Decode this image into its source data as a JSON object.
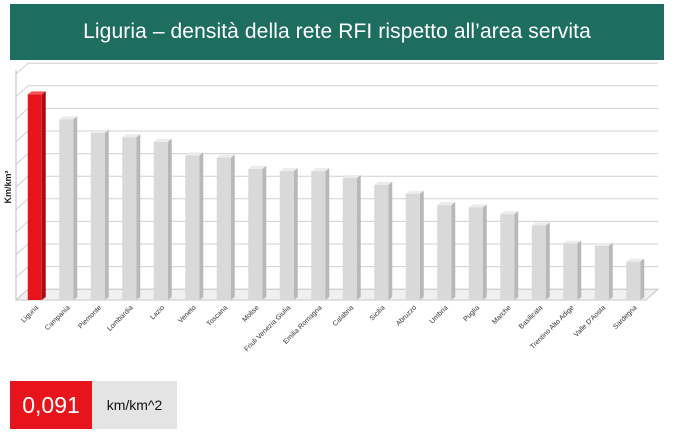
{
  "header": {
    "title": "Liguria – densità della rete RFI rispetto all’area servita"
  },
  "highlight": {
    "value": "0,091",
    "unit": "km/km^2"
  },
  "colors": {
    "title_bg": "#1e6e5f",
    "highlight": "#e8141c",
    "bar": "#d9d9d9",
    "unit_bg": "#e4e4e4"
  },
  "chart_data": {
    "type": "bar",
    "title": "",
    "xlabel": "",
    "ylabel": "Km/km²",
    "ylim": [
      0,
      0.1
    ],
    "grid": true,
    "legend": "none",
    "categories": [
      "Liguria",
      "Campania",
      "Piemonte",
      "Lombardia",
      "Lazio",
      "Veneto",
      "Toscana",
      "Molise",
      "Friuli Venezia Giulia",
      "Emilia Romagna",
      "Calabria",
      "Sicilia",
      "Abruzzo",
      "Umbria",
      "Puglia",
      "Marche",
      "Basilicata",
      "Trentino Alto Adige",
      "Valle D'Aosta",
      "Sardegna"
    ],
    "values": [
      0.091,
      0.08,
      0.074,
      0.072,
      0.07,
      0.064,
      0.063,
      0.058,
      0.057,
      0.057,
      0.054,
      0.051,
      0.047,
      0.042,
      0.041,
      0.038,
      0.033,
      0.025,
      0.024,
      0.017
    ],
    "highlight_index": 0
  }
}
